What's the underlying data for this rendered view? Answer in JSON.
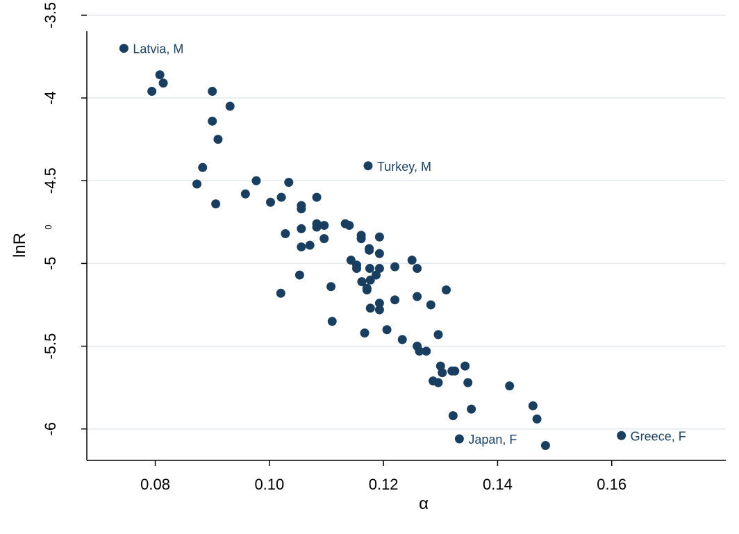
{
  "chart_data": {
    "type": "scatter",
    "title": "",
    "xlabel": "α",
    "ylabel": "lnR",
    "ylabel_subscript": "0",
    "xlim": [
      0.068,
      0.18
    ],
    "ylim": [
      -6.19,
      -3.45
    ],
    "xticks": [
      0.08,
      0.1,
      0.12,
      0.14,
      0.16
    ],
    "xtick_labels": [
      "0.08",
      "0.10",
      "0.12",
      "0.14",
      "0.16"
    ],
    "yticks": [
      -3.5,
      -4,
      -4.5,
      -5,
      -5.5,
      -6
    ],
    "ytick_labels": [
      "-3.5",
      "-4",
      "-4.5",
      "-5",
      "-5.5",
      "-6"
    ],
    "grid": "horizontal",
    "colors": {
      "marker": "#1a3e5f",
      "label": "#1a3e5f",
      "grid": "#e2eaee",
      "axis": "#000000"
    },
    "labeled_points": [
      {
        "x": 0.0745,
        "y": -3.7,
        "label": "Latvia, M"
      },
      {
        "x": 0.1173,
        "y": -4.41,
        "label": "Turkey, M"
      },
      {
        "x": 0.1333,
        "y": -6.06,
        "label": "Japan, F"
      },
      {
        "x": 0.1617,
        "y": -6.04,
        "label": "Greece, F"
      }
    ],
    "points": [
      [
        0.0808,
        -3.86
      ],
      [
        0.0814,
        -3.91
      ],
      [
        0.0794,
        -3.96
      ],
      [
        0.09,
        -3.96
      ],
      [
        0.0931,
        -4.05
      ],
      [
        0.09,
        -4.14
      ],
      [
        0.091,
        -4.25
      ],
      [
        0.0883,
        -4.42
      ],
      [
        0.0873,
        -4.52
      ],
      [
        0.0906,
        -4.64
      ],
      [
        0.0977,
        -4.5
      ],
      [
        0.0958,
        -4.58
      ],
      [
        0.1002,
        -4.63
      ],
      [
        0.1021,
        -4.6
      ],
      [
        0.1034,
        -4.51
      ],
      [
        0.1028,
        -4.82
      ],
      [
        0.1056,
        -4.65
      ],
      [
        0.1056,
        -4.67
      ],
      [
        0.1056,
        -4.79
      ],
      [
        0.1056,
        -4.9
      ],
      [
        0.1071,
        -4.89
      ],
      [
        0.1083,
        -4.6
      ],
      [
        0.1083,
        -4.76
      ],
      [
        0.1083,
        -4.78
      ],
      [
        0.1096,
        -4.77
      ],
      [
        0.1096,
        -4.85
      ],
      [
        0.1133,
        -4.76
      ],
      [
        0.114,
        -4.77
      ],
      [
        0.1161,
        -4.83
      ],
      [
        0.1161,
        -4.85
      ],
      [
        0.1193,
        -4.84
      ],
      [
        0.1175,
        -4.91
      ],
      [
        0.1175,
        -4.92
      ],
      [
        0.1193,
        -4.94
      ],
      [
        0.1143,
        -4.98
      ],
      [
        0.1153,
        -5.01
      ],
      [
        0.1153,
        -5.03
      ],
      [
        0.1176,
        -5.03
      ],
      [
        0.1193,
        -5.03
      ],
      [
        0.1187,
        -5.07
      ],
      [
        0.1177,
        -5.1
      ],
      [
        0.1162,
        -5.11
      ],
      [
        0.1171,
        -5.15
      ],
      [
        0.1171,
        -5.16
      ],
      [
        0.1193,
        -5.24
      ],
      [
        0.1177,
        -5.27
      ],
      [
        0.1193,
        -5.28
      ],
      [
        0.122,
        -5.02
      ],
      [
        0.125,
        -4.98
      ],
      [
        0.1259,
        -5.03
      ],
      [
        0.122,
        -5.22
      ],
      [
        0.1259,
        -5.2
      ],
      [
        0.1283,
        -5.25
      ],
      [
        0.131,
        -5.16
      ],
      [
        0.1053,
        -5.07
      ],
      [
        0.1108,
        -5.14
      ],
      [
        0.102,
        -5.18
      ],
      [
        0.111,
        -5.35
      ],
      [
        0.1167,
        -5.42
      ],
      [
        0.1206,
        -5.4
      ],
      [
        0.1233,
        -5.46
      ],
      [
        0.1259,
        -5.5
      ],
      [
        0.1263,
        -5.53
      ],
      [
        0.1275,
        -5.53
      ],
      [
        0.1296,
        -5.43
      ],
      [
        0.13,
        -5.62
      ],
      [
        0.1303,
        -5.66
      ],
      [
        0.132,
        -5.65
      ],
      [
        0.1325,
        -5.65
      ],
      [
        0.1343,
        -5.62
      ],
      [
        0.1287,
        -5.71
      ],
      [
        0.1296,
        -5.72
      ],
      [
        0.1348,
        -5.72
      ],
      [
        0.1421,
        -5.74
      ],
      [
        0.1322,
        -5.92
      ],
      [
        0.1354,
        -5.88
      ],
      [
        0.1462,
        -5.86
      ],
      [
        0.1469,
        -5.94
      ],
      [
        0.1484,
        -6.1
      ]
    ]
  }
}
